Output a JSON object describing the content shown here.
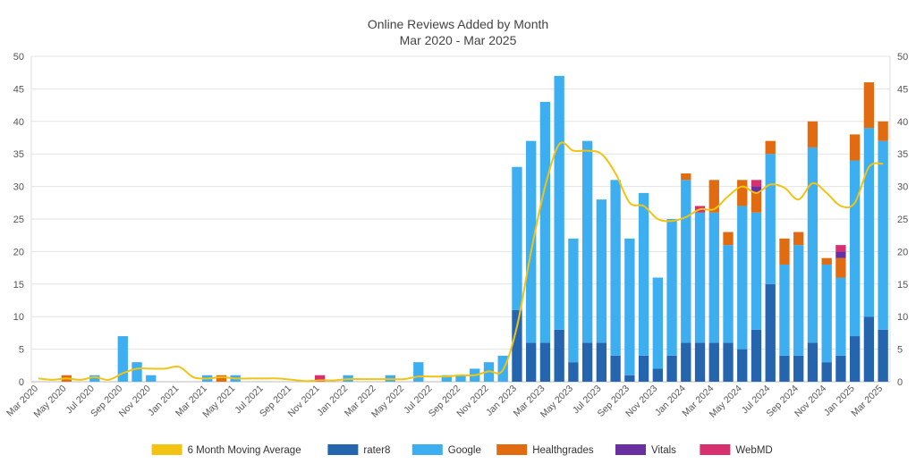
{
  "chart_data": {
    "type": "bar",
    "stacked": true,
    "title": "Online Reviews Added by Month",
    "subtitle": "Mar 2020 - Mar 2025",
    "ylim": [
      0,
      50
    ],
    "yticks": [
      0,
      5,
      10,
      15,
      20,
      25,
      30,
      35,
      40,
      45,
      50
    ],
    "right_axis": true,
    "grid": true,
    "legend_position": "bottom",
    "categories": [
      "Mar 2020",
      "Apr 2020",
      "May 2020",
      "Jun 2020",
      "Jul 2020",
      "Aug 2020",
      "Sep 2020",
      "Oct 2020",
      "Nov 2020",
      "Dec 2020",
      "Jan 2021",
      "Feb 2021",
      "Mar 2021",
      "Apr 2021",
      "May 2021",
      "Jun 2021",
      "Jul 2021",
      "Aug 2021",
      "Sep 2021",
      "Oct 2021",
      "Nov 2021",
      "Dec 2021",
      "Jan 2022",
      "Feb 2022",
      "Mar 2022",
      "Apr 2022",
      "May 2022",
      "Jun 2022",
      "Jul 2022",
      "Aug 2022",
      "Sep 2022",
      "Oct 2022",
      "Nov 2022",
      "Dec 2022",
      "Jan 2023",
      "Feb 2023",
      "Mar 2023",
      "Apr 2023",
      "May 2023",
      "Jun 2023",
      "Jul 2023",
      "Aug 2023",
      "Sep 2023",
      "Oct 2023",
      "Nov 2023",
      "Dec 2023",
      "Jan 2024",
      "Feb 2024",
      "Mar 2024",
      "Apr 2024",
      "May 2024",
      "Jun 2024",
      "Jul 2024",
      "Aug 2024",
      "Sep 2024",
      "Oct 2024",
      "Nov 2024",
      "Dec 2024",
      "Jan 2025",
      "Feb 2025",
      "Mar 2025"
    ],
    "x_tick_labels": [
      "Mar 2020",
      "May 2020",
      "Jul 2020",
      "Sep 2020",
      "Nov 2020",
      "Jan 2021",
      "Mar 2021",
      "May 2021",
      "Jul 2021",
      "Sep 2021",
      "Nov 2021",
      "Jan 2022",
      "Mar 2022",
      "May 2022",
      "Jul 2022",
      "Sep 2022",
      "Nov 2022",
      "Jan 2023",
      "Mar 2023",
      "May 2023",
      "Jul 2023",
      "Sep 2023",
      "Nov 2023",
      "Jan 2024",
      "Mar 2024",
      "May 2024",
      "Jul 2024",
      "Sep 2024",
      "Nov 2024",
      "Jan 2025",
      "Mar 2025"
    ],
    "series": [
      {
        "name": "rater8",
        "color": "#2565ae",
        "values": [
          0,
          0,
          0,
          0,
          0,
          0,
          0,
          0,
          0,
          0,
          0,
          0,
          0,
          0,
          0,
          0,
          0,
          0,
          0,
          0,
          0,
          0,
          0,
          0,
          0,
          0,
          0,
          0,
          0,
          0,
          0,
          0,
          0,
          0,
          11,
          6,
          6,
          8,
          3,
          6,
          6,
          4,
          1,
          4,
          2,
          4,
          6,
          6,
          6,
          6,
          5,
          8,
          15,
          4,
          4,
          6,
          3,
          4,
          7,
          10,
          8
        ]
      },
      {
        "name": "Google",
        "color": "#3daef0",
        "values": [
          0,
          0,
          0,
          0,
          1,
          0,
          7,
          3,
          1,
          0,
          0,
          0,
          1,
          0,
          1,
          0,
          0,
          0,
          0,
          0,
          0,
          0,
          1,
          0,
          0,
          1,
          0,
          3,
          0,
          1,
          1,
          2,
          3,
          4,
          22,
          31,
          37,
          39,
          19,
          31,
          22,
          27,
          21,
          25,
          14,
          21,
          25,
          20,
          20,
          15,
          22,
          18,
          20,
          14,
          17,
          30,
          15,
          12,
          27,
          29,
          29
        ]
      },
      {
        "name": "Healthgrades",
        "color": "#e06b10",
        "values": [
          0,
          0,
          1,
          0,
          0,
          0,
          0,
          0,
          0,
          0,
          0,
          0,
          0,
          1,
          0,
          0,
          0,
          0,
          0,
          0,
          0,
          0,
          0,
          0,
          0,
          0,
          0,
          0,
          0,
          0,
          0,
          0,
          0,
          0,
          0,
          0,
          0,
          0,
          0,
          0,
          0,
          0,
          0,
          0,
          0,
          0,
          1,
          0,
          5,
          2,
          4,
          3,
          2,
          4,
          2,
          4,
          1,
          3,
          4,
          7,
          3
        ]
      },
      {
        "name": "Vitals",
        "color": "#6a2fa0",
        "values": [
          0,
          0,
          0,
          0,
          0,
          0,
          0,
          0,
          0,
          0,
          0,
          0,
          0,
          0,
          0,
          0,
          0,
          0,
          0,
          0,
          0,
          0,
          0,
          0,
          0,
          0,
          0,
          0,
          0,
          0,
          0,
          0,
          0,
          0,
          0,
          0,
          0,
          0,
          0,
          0,
          0,
          0,
          0,
          0,
          0,
          0,
          0,
          0,
          0,
          0,
          0,
          1,
          0,
          0,
          0,
          0,
          0,
          1,
          0,
          0,
          0
        ]
      },
      {
        "name": "WebMD",
        "color": "#d6306e",
        "values": [
          0,
          0,
          0,
          0,
          0,
          0,
          0,
          0,
          0,
          0,
          0,
          0,
          0,
          0,
          0,
          0,
          0,
          0,
          0,
          0,
          1,
          0,
          0,
          0,
          0,
          0,
          0,
          0,
          0,
          0,
          0,
          0,
          0,
          0,
          0,
          0,
          0,
          0,
          0,
          0,
          0,
          0,
          0,
          0,
          0,
          0,
          0,
          1,
          0,
          0,
          0,
          1,
          0,
          0,
          0,
          0,
          0,
          1,
          0,
          0,
          0
        ]
      }
    ],
    "line": {
      "name": "6 Month Moving Average",
      "color": "#f2c313",
      "values": [
        0.5,
        0.3,
        0.5,
        0.3,
        0.7,
        0.3,
        1.3,
        2,
        2,
        2,
        2.3,
        0.7,
        0.5,
        0.7,
        0.5,
        0.5,
        0.5,
        0.5,
        0.3,
        0.1,
        0.2,
        0.2,
        0.4,
        0.4,
        0.4,
        0.4,
        0.4,
        0.8,
        0.8,
        0.8,
        1,
        1,
        1.6,
        1.8,
        8.5,
        20,
        30,
        36.5,
        35.5,
        35.5,
        35,
        32,
        27.5,
        27,
        25,
        24.7,
        25.3,
        26.5,
        26.5,
        28.5,
        30,
        29,
        30.3,
        29.8,
        28,
        30.5,
        29,
        27,
        27.5,
        33,
        33.5
      ]
    },
    "legend": [
      "6 Month Moving Average",
      "rater8",
      "Google",
      "Healthgrades",
      "Vitals",
      "WebMD"
    ]
  }
}
